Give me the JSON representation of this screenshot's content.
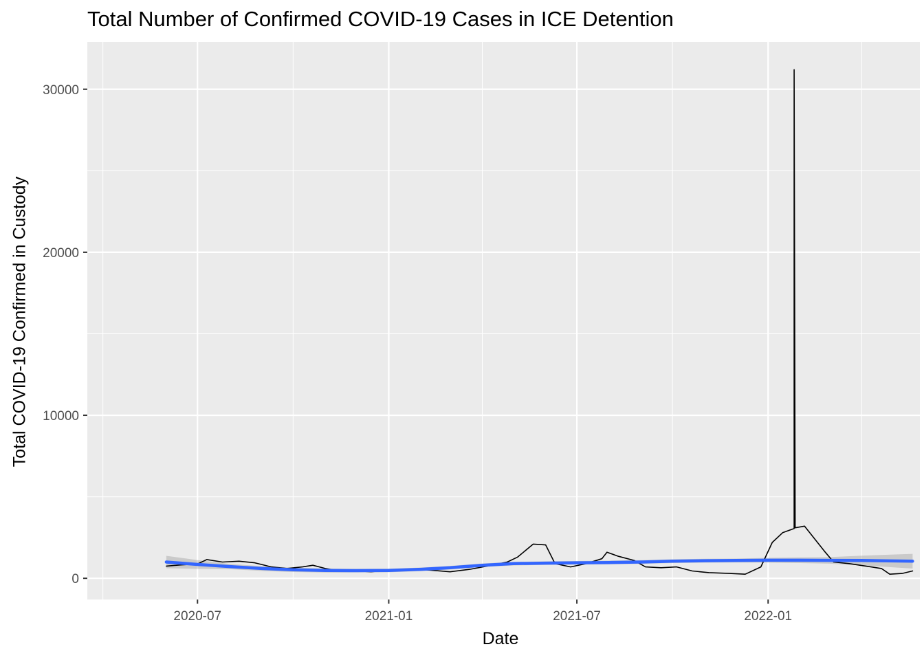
{
  "chart_data": {
    "type": "line",
    "title": "Total Number of Confirmed COVID-19 Cases in ICE Detention",
    "xlabel": "Date",
    "ylabel": "Total COVID-19 Confirmed in Custody",
    "xlim": [
      "2020-03-17",
      "2022-05-27"
    ],
    "ylim": [
      -1300,
      32900
    ],
    "x_ticks": [
      "2020-07",
      "2021-01",
      "2021-07",
      "2022-01"
    ],
    "y_ticks": [
      0,
      10000,
      20000,
      30000
    ],
    "grid": true,
    "legend": "none",
    "series": [
      {
        "kind": "observed",
        "color": "#000000",
        "points": [
          [
            "2020-06-01",
            750
          ],
          [
            "2020-06-15",
            820
          ],
          [
            "2020-07-01",
            880
          ],
          [
            "2020-07-10",
            1150
          ],
          [
            "2020-07-25",
            1000
          ],
          [
            "2020-08-10",
            1050
          ],
          [
            "2020-08-25",
            950
          ],
          [
            "2020-09-10",
            700
          ],
          [
            "2020-09-25",
            600
          ],
          [
            "2020-10-10",
            700
          ],
          [
            "2020-10-20",
            800
          ],
          [
            "2020-11-01",
            600
          ],
          [
            "2020-11-15",
            450
          ],
          [
            "2020-12-01",
            450
          ],
          [
            "2020-12-15",
            400
          ],
          [
            "2021-01-01",
            500
          ],
          [
            "2021-01-20",
            550
          ],
          [
            "2021-02-10",
            500
          ],
          [
            "2021-03-01",
            400
          ],
          [
            "2021-03-20",
            550
          ],
          [
            "2021-04-10",
            800
          ],
          [
            "2021-04-25",
            1000
          ],
          [
            "2021-05-05",
            1300
          ],
          [
            "2021-05-20",
            2100
          ],
          [
            "2021-06-01",
            2050
          ],
          [
            "2021-06-10",
            900
          ],
          [
            "2021-06-25",
            700
          ],
          [
            "2021-07-10",
            900
          ],
          [
            "2021-07-25",
            1200
          ],
          [
            "2021-07-30",
            1600
          ],
          [
            "2021-08-10",
            1350
          ],
          [
            "2021-08-25",
            1100
          ],
          [
            "2021-09-05",
            700
          ],
          [
            "2021-09-20",
            650
          ],
          [
            "2021-10-05",
            700
          ],
          [
            "2021-10-20",
            450
          ],
          [
            "2021-11-05",
            350
          ],
          [
            "2021-11-25",
            300
          ],
          [
            "2021-12-10",
            250
          ],
          [
            "2021-12-25",
            700
          ],
          [
            "2022-01-05",
            2200
          ],
          [
            "2022-01-15",
            2800
          ],
          [
            "2022-01-26",
            3050
          ],
          [
            "2022-01-26",
            31200
          ],
          [
            "2022-01-27",
            3100
          ],
          [
            "2022-02-05",
            3200
          ],
          [
            "2022-02-15",
            2400
          ],
          [
            "2022-02-25",
            1600
          ],
          [
            "2022-03-05",
            1000
          ],
          [
            "2022-03-20",
            900
          ],
          [
            "2022-04-05",
            750
          ],
          [
            "2022-04-20",
            600
          ],
          [
            "2022-04-28",
            250
          ],
          [
            "2022-05-10",
            300
          ],
          [
            "2022-05-20",
            450
          ]
        ]
      },
      {
        "kind": "smoothed",
        "color": "#3366ff",
        "points": [
          [
            "2020-06-01",
            1000
          ],
          [
            "2020-07-01",
            850
          ],
          [
            "2020-08-01",
            720
          ],
          [
            "2020-09-01",
            600
          ],
          [
            "2020-10-01",
            520
          ],
          [
            "2020-11-01",
            480
          ],
          [
            "2020-12-01",
            470
          ],
          [
            "2021-01-01",
            480
          ],
          [
            "2021-02-01",
            550
          ],
          [
            "2021-03-01",
            650
          ],
          [
            "2021-04-01",
            800
          ],
          [
            "2021-05-01",
            900
          ],
          [
            "2021-06-01",
            930
          ],
          [
            "2021-07-01",
            950
          ],
          [
            "2021-08-01",
            970
          ],
          [
            "2021-09-01",
            1000
          ],
          [
            "2021-10-01",
            1050
          ],
          [
            "2021-11-01",
            1080
          ],
          [
            "2021-12-01",
            1090
          ],
          [
            "2022-01-01",
            1110
          ],
          [
            "2022-02-01",
            1110
          ],
          [
            "2022-03-01",
            1100
          ],
          [
            "2022-04-01",
            1090
          ],
          [
            "2022-05-20",
            1050
          ]
        ],
        "band_halfwidth": [
          [
            "2020-06-01",
            380
          ],
          [
            "2020-08-01",
            160
          ],
          [
            "2020-12-01",
            110
          ],
          [
            "2021-06-01",
            110
          ],
          [
            "2021-12-01",
            120
          ],
          [
            "2022-03-01",
            200
          ],
          [
            "2022-05-20",
            450
          ]
        ]
      }
    ]
  }
}
